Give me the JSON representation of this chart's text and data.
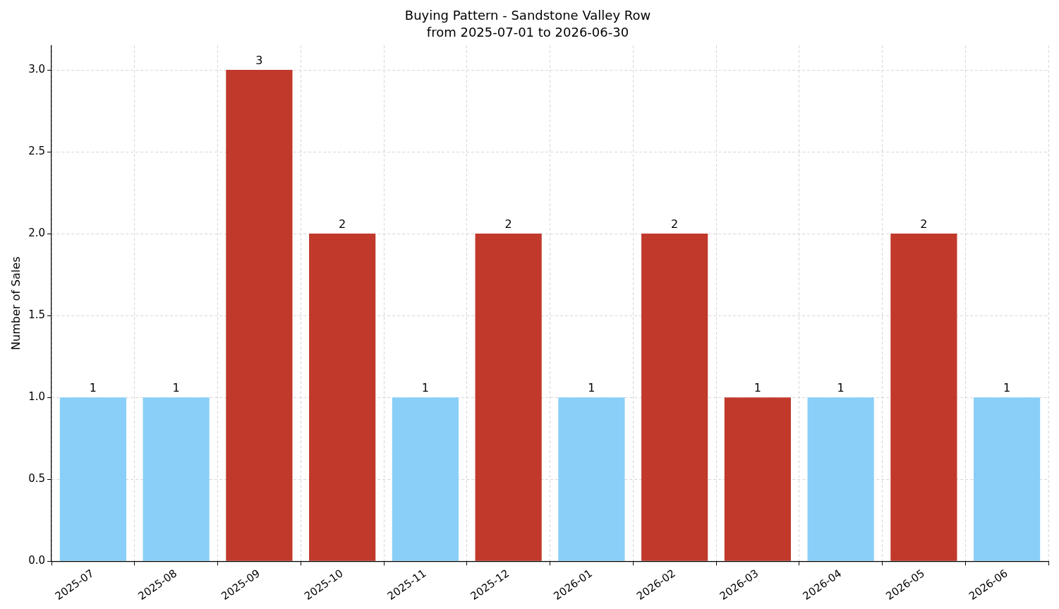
{
  "chart_data": {
    "type": "bar",
    "title": "Buying Pattern - Sandstone Valley Row",
    "subtitle": "from 2025-07-01 to 2026-06-30",
    "ylabel": "Number of Sales",
    "categories": [
      "2025-07",
      "2025-08",
      "2025-09",
      "2025-10",
      "2025-11",
      "2025-12",
      "2026-01",
      "2026-02",
      "2026-03",
      "2026-04",
      "2026-05",
      "2026-06"
    ],
    "values": [
      1,
      1,
      3,
      2,
      1,
      2,
      1,
      2,
      1,
      1,
      2,
      1
    ],
    "colors": [
      "#89cff8",
      "#89cff8",
      "#c0392b",
      "#c0392b",
      "#89cff8",
      "#c0392b",
      "#89cff8",
      "#c0392b",
      "#c0392b",
      "#89cff8",
      "#c0392b",
      "#89cff8"
    ],
    "ylim": [
      0,
      3.15
    ],
    "yticks": [
      {
        "value": 0,
        "label": "0.0"
      },
      {
        "value": 0.5,
        "label": "0.5"
      },
      {
        "value": 1,
        "label": "1.0"
      },
      {
        "value": 1.5,
        "label": "1.5"
      },
      {
        "value": 2,
        "label": "2.0"
      },
      {
        "value": 2.5,
        "label": "2.5"
      },
      {
        "value": 3,
        "label": "3.0"
      }
    ],
    "grid": true,
    "data_labels": true
  }
}
